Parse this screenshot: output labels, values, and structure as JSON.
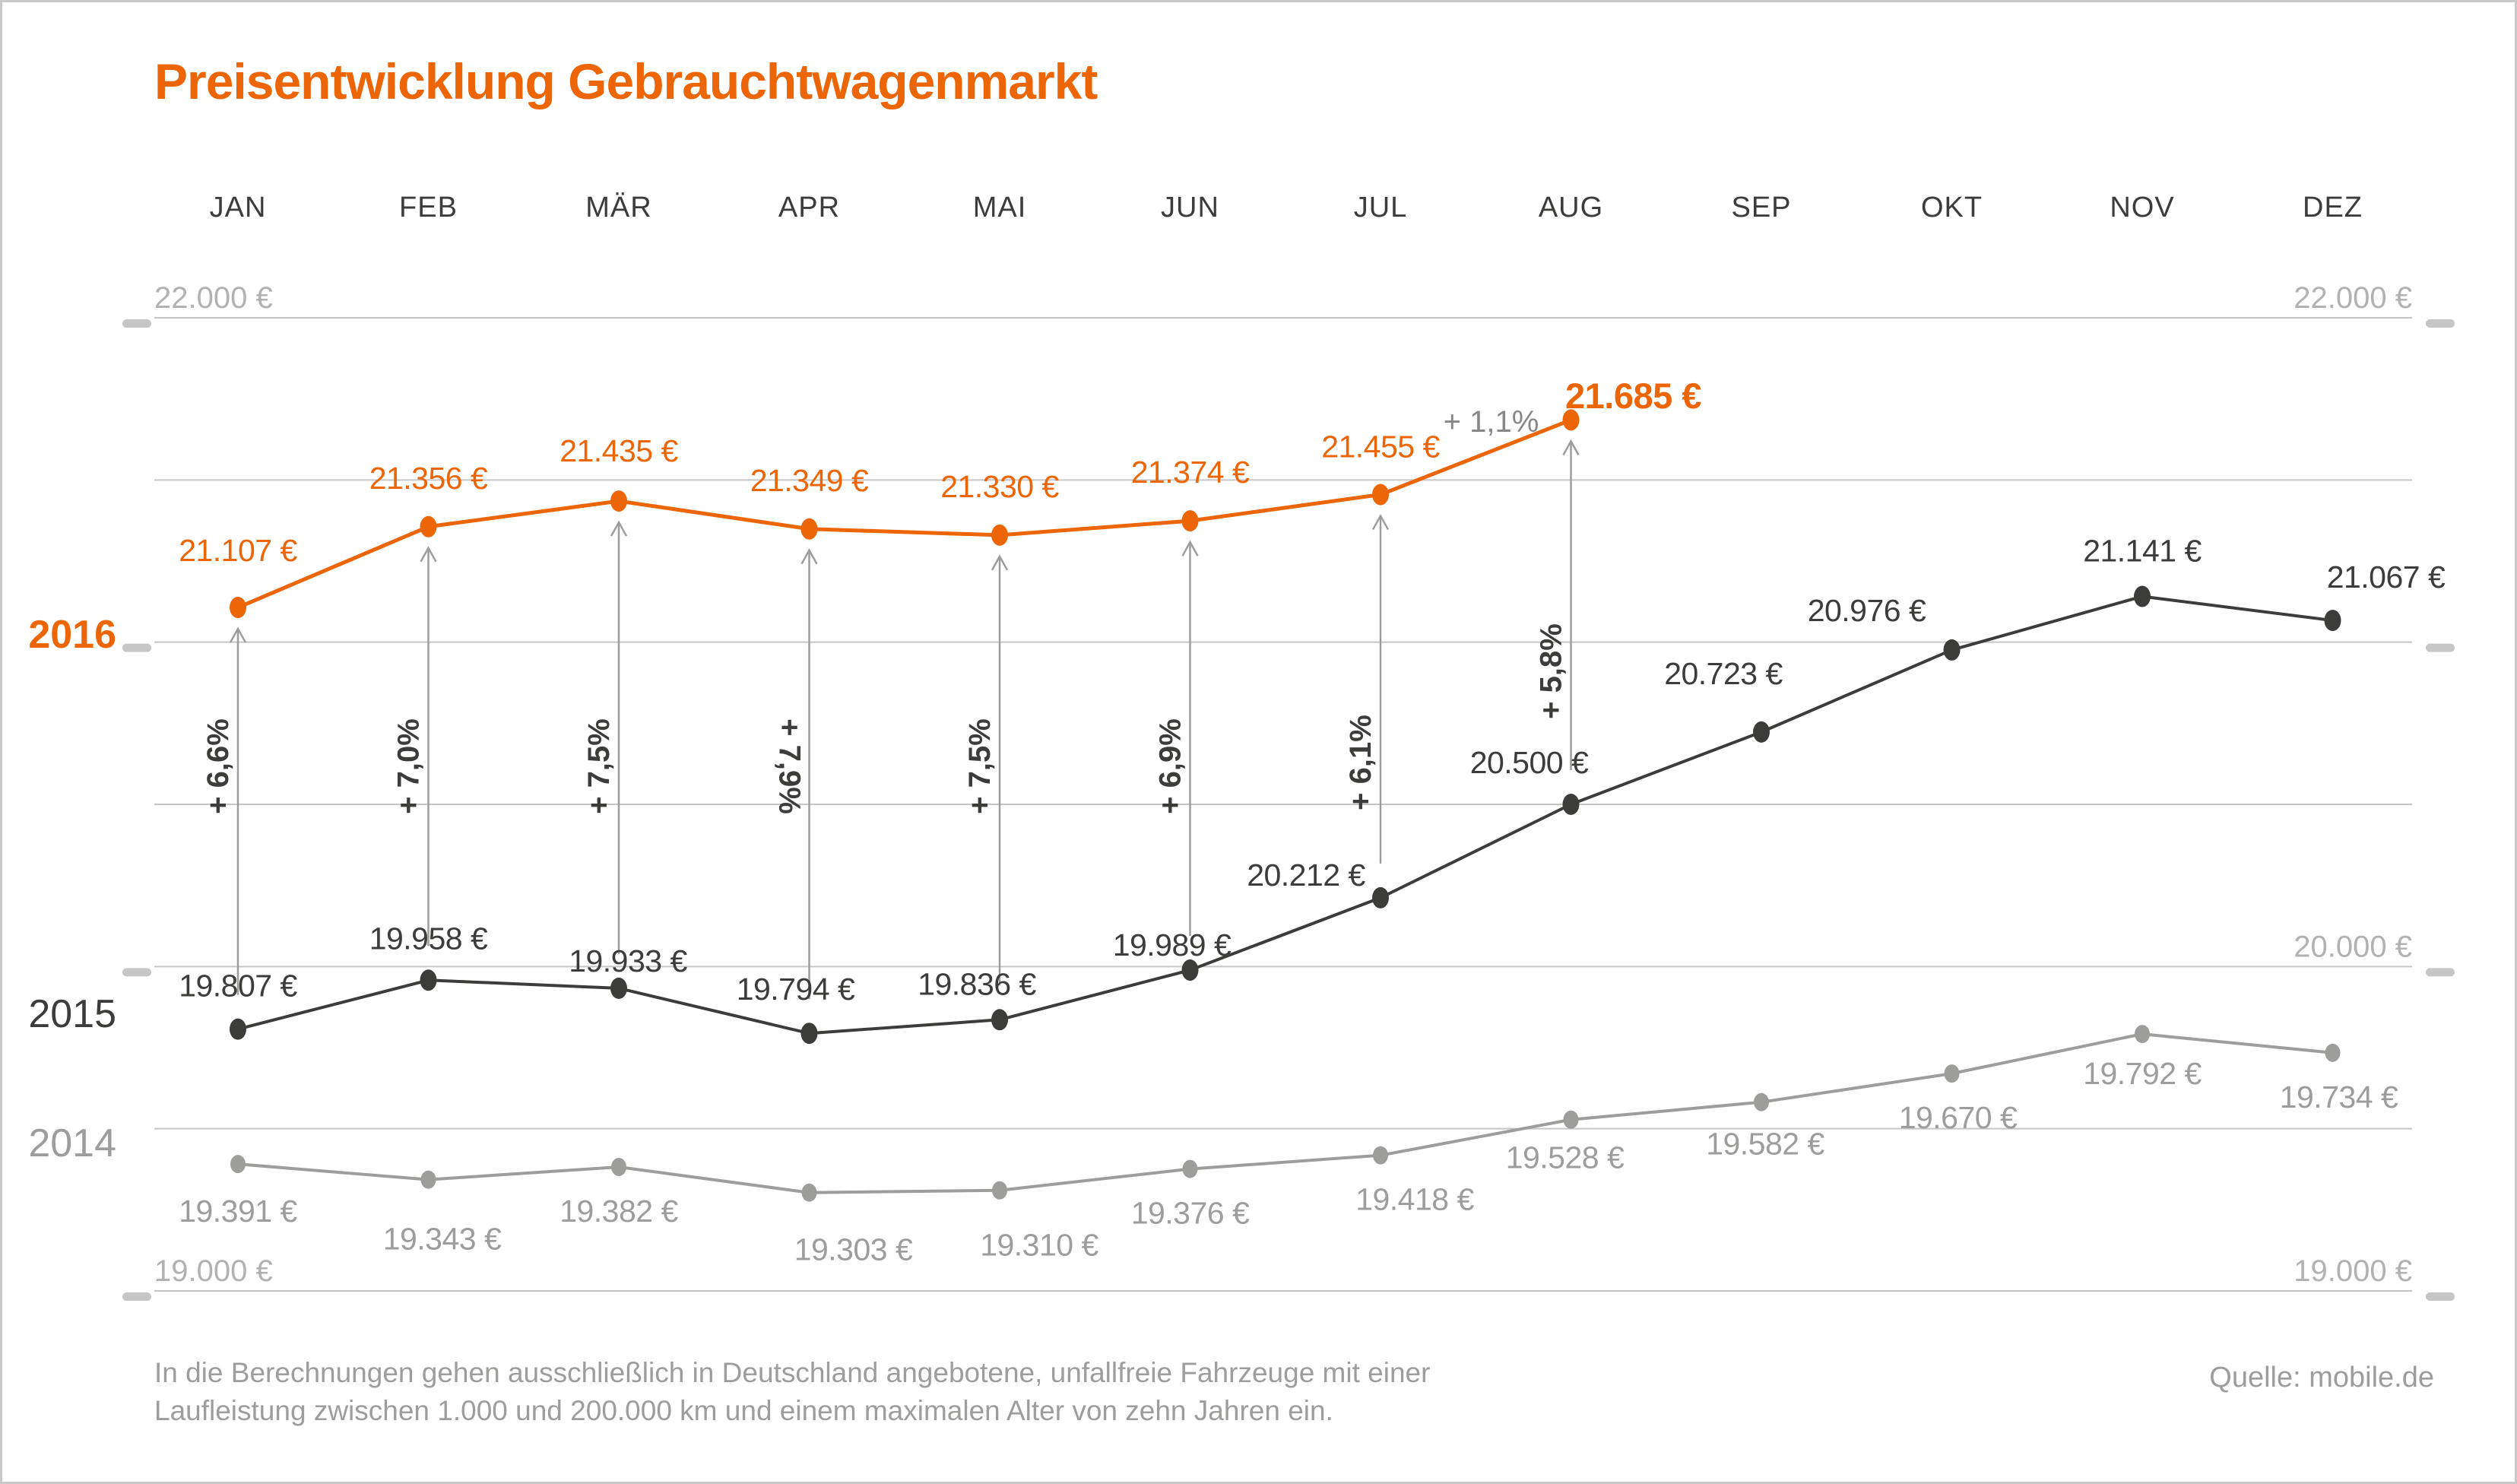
{
  "title": "Preisentwicklung Gebrauchtwagenmarkt",
  "chart_data": {
    "type": "line",
    "title": "Preisentwicklung Gebrauchtwagenmarkt",
    "categories": [
      "JAN",
      "FEB",
      "MÄR",
      "APR",
      "MAI",
      "JUN",
      "JUL",
      "AUG",
      "SEP",
      "OKT",
      "NOV",
      "DEZ"
    ],
    "unit": "EUR",
    "ylim": [
      19000,
      22000
    ],
    "grid": true,
    "gridline_values": [
      22000,
      21500,
      21000,
      20500,
      20000,
      19500,
      19000
    ],
    "tick_values": [
      22000,
      21000,
      20000,
      19000
    ],
    "axis_labels_left": [
      {
        "value": 22000,
        "text": "22.000 €"
      },
      {
        "value": 19000,
        "text": "19.000 €"
      }
    ],
    "axis_labels_right": [
      {
        "value": 22000,
        "text": "22.000 €"
      },
      {
        "value": 20000,
        "text": "20.000 €"
      },
      {
        "value": 19000,
        "text": "19.000 €"
      }
    ],
    "series": [
      {
        "name": "2016",
        "color": "#ec6608",
        "bold_label_index": 7,
        "values": [
          21107,
          21356,
          21435,
          21349,
          21330,
          21374,
          21455,
          21685
        ],
        "labels": [
          "21.107 €",
          "21.356 €",
          "21.435 €",
          "21.349 €",
          "21.330 €",
          "21.374 €",
          "21.455 €",
          "21.685 €"
        ]
      },
      {
        "name": "2015",
        "color": "#3c3c3b",
        "values": [
          19807,
          19958,
          19933,
          19794,
          19836,
          19989,
          20212,
          20500,
          20723,
          20976,
          21141,
          21067
        ],
        "labels": [
          "19.807 €",
          "19.958 €",
          "19.933 €",
          "19.794 €",
          "19.836 €",
          "19.989 €",
          "20.212 €",
          "20.500 €",
          "20.723 €",
          "20.976 €",
          "21.141 €",
          "21.067 €"
        ]
      },
      {
        "name": "2014",
        "color": "#9d9d9c",
        "values": [
          19391,
          19343,
          19382,
          19303,
          19310,
          19376,
          19418,
          19528,
          19582,
          19670,
          19792,
          19734
        ],
        "labels": [
          "19.391 €",
          "19.343 €",
          "19.382 €",
          "19.303 €",
          "19.310 €",
          "19.376 €",
          "19.418 €",
          "19.528 €",
          "19.582 €",
          "19.670 €",
          "19.792 €",
          "19.734 €"
        ]
      }
    ],
    "yoy_changes": [
      "+ 6,6%",
      "+ 7,0%",
      "+ 7,5%",
      "+ 7,9%",
      "+ 7,5%",
      "+ 6,9%",
      "+ 6,1%",
      "+ 5,8%"
    ],
    "mom_change": "+ 1,1%"
  },
  "footer": {
    "note_line1": "In die Berechnungen gehen ausschließlich in Deutschland angebotene, unfallfreie Fahrzeuge mit einer",
    "note_line2": "Laufleistung zwischen 1.000 und 200.000 km und einem maximalen Alter von zehn Jahren ein.",
    "source": "Quelle: mobile.de"
  },
  "colors": {
    "accent": "#ec6608",
    "series_2015": "#3c3c3b",
    "series_2014": "#9d9d9c",
    "grid": "#c6c6c6",
    "tick": "#c6c6c6",
    "axis_text": "#b2b2b2",
    "month_text": "#3c3c3b",
    "percent_text": "#3c3c3b",
    "arrow": "#9d9d9c",
    "mom_text": "#878787",
    "footer_text": "#9d9d9c"
  }
}
